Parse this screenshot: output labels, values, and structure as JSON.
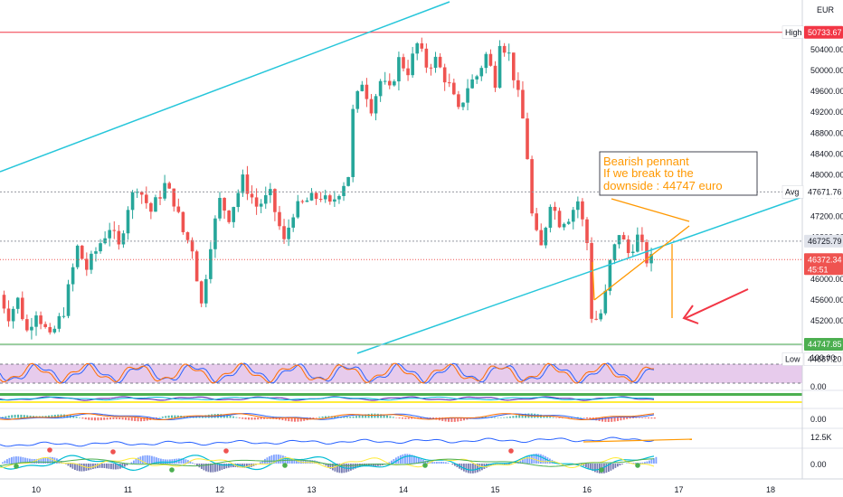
{
  "chart_data": {
    "type": "candlestick",
    "currency": "EUR",
    "x_ticks": [
      "10",
      "11",
      "12",
      "13",
      "14",
      "15",
      "16",
      "17",
      "18"
    ],
    "y_ticks": [
      44400,
      44800,
      45200,
      45600,
      46000,
      46400,
      46800,
      47200,
      47600,
      48000,
      48400,
      48800,
      49200,
      49600,
      50000,
      50400,
      50700
    ],
    "y_range": [
      44400,
      50850
    ],
    "price_labels": {
      "high": {
        "name": "High",
        "value": "50733.67",
        "level": 50733.67
      },
      "avg": {
        "name": "Avg",
        "value": "47671.76",
        "level": 47671.76
      },
      "last_a": {
        "value": "46725.79",
        "level": 46725.79
      },
      "current": {
        "value": "46372.34",
        "countdown": "45:51",
        "level": 46372.34
      },
      "target": {
        "value": "44747.85",
        "level": 44747.85
      },
      "low": {
        "name": "Low",
        "value": "44687.20",
        "level": 44687.2
      }
    },
    "price_nodes": [
      [
        9.6,
        45900
      ],
      [
        9.75,
        45300
      ],
      [
        9.85,
        45600
      ],
      [
        9.95,
        45000
      ],
      [
        10.05,
        45400
      ],
      [
        10.2,
        44850
      ],
      [
        10.35,
        45400
      ],
      [
        10.5,
        46600
      ],
      [
        10.6,
        46200
      ],
      [
        10.75,
        46700
      ],
      [
        10.85,
        47000
      ],
      [
        10.95,
        46600
      ],
      [
        11.05,
        47400
      ],
      [
        11.15,
        47800
      ],
      [
        11.3,
        47300
      ],
      [
        11.45,
        47800
      ],
      [
        11.55,
        47500
      ],
      [
        11.65,
        46900
      ],
      [
        11.75,
        46600
      ],
      [
        11.85,
        45500
      ],
      [
        11.95,
        46700
      ],
      [
        12.05,
        47500
      ],
      [
        12.15,
        47200
      ],
      [
        12.3,
        47900
      ],
      [
        12.45,
        47400
      ],
      [
        12.6,
        47600
      ],
      [
        12.75,
        46700
      ],
      [
        12.85,
        47300
      ],
      [
        13.0,
        47500
      ],
      [
        13.15,
        47600
      ],
      [
        13.25,
        47400
      ],
      [
        13.35,
        47700
      ],
      [
        13.45,
        48000
      ],
      [
        13.5,
        49200
      ],
      [
        13.6,
        49800
      ],
      [
        13.7,
        49300
      ],
      [
        13.8,
        49800
      ],
      [
        13.9,
        49600
      ],
      [
        14.0,
        50200
      ],
      [
        14.1,
        50000
      ],
      [
        14.2,
        50500
      ],
      [
        14.3,
        50100
      ],
      [
        14.4,
        50200
      ],
      [
        14.55,
        49700
      ],
      [
        14.65,
        49200
      ],
      [
        14.75,
        49700
      ],
      [
        14.85,
        49900
      ],
      [
        14.95,
        50300
      ],
      [
        15.05,
        49800
      ],
      [
        15.1,
        50600
      ],
      [
        15.2,
        50300
      ],
      [
        15.3,
        49500
      ],
      [
        15.38,
        48800
      ],
      [
        15.46,
        47000
      ],
      [
        15.55,
        46600
      ],
      [
        15.65,
        47500
      ],
      [
        15.75,
        47100
      ],
      [
        15.85,
        47200
      ],
      [
        15.95,
        47500
      ],
      [
        16.05,
        46700
      ],
      [
        16.1,
        45300
      ],
      [
        16.18,
        45200
      ],
      [
        16.25,
        45700
      ],
      [
        16.3,
        46300
      ],
      [
        16.4,
        46900
      ],
      [
        16.5,
        46500
      ],
      [
        16.6,
        46800
      ],
      [
        16.7,
        46372
      ]
    ],
    "annotation": {
      "lines": [
        "Bearish pennant",
        "If we break to the",
        "downside : 44747 euro"
      ]
    },
    "indicators": {
      "panel1_ticks": [
        "100.00",
        "0.00"
      ],
      "panel3_ticks": [
        "0.00"
      ],
      "panel4_ticks": [
        "12.5K"
      ],
      "panel5_ticks": [
        "0.00"
      ]
    },
    "colors": {
      "up": "#26a69a",
      "down": "#ef5350",
      "channel": "#26c6da",
      "pennant": "#ff9800",
      "arrow": "#f23645",
      "high_line": "#f23645",
      "target_line": "#4caf50",
      "rsi_fill": "#e1bee7"
    }
  }
}
